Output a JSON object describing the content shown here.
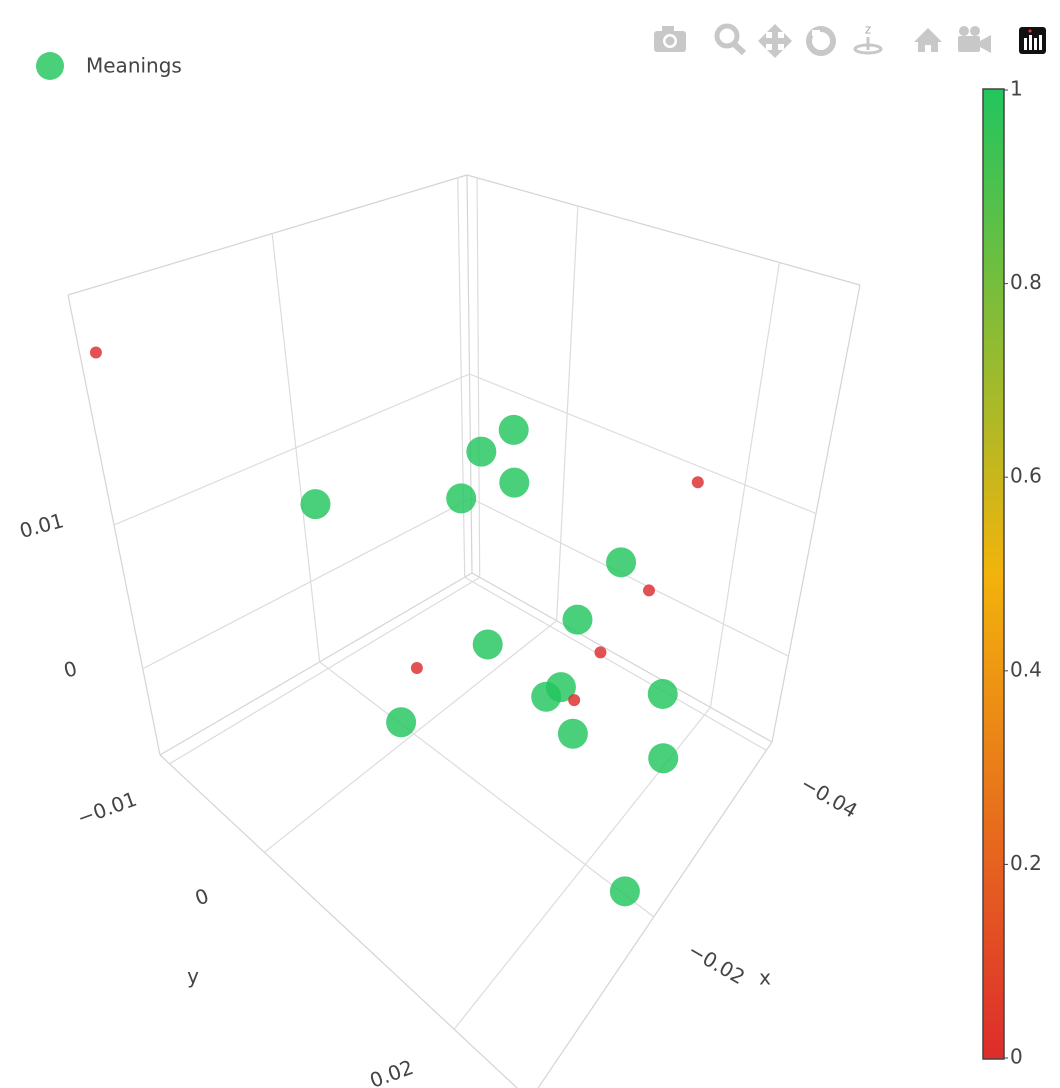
{
  "chart_data": {
    "type": "scatter3d",
    "legend_corner": "top-left",
    "series": [
      {
        "name": "Meanings",
        "x": [
          -0.0324,
          -0.0315,
          -0.0298,
          -0.0298,
          -0.0195,
          -0.0281,
          -0.0281,
          -0.0238,
          -0.0238,
          -0.0238,
          -0.0161,
          -0.0281,
          -0.0238,
          -0.0281,
          -0.0195,
          0.0011,
          -0.0367,
          -0.0315,
          -0.0281,
          -0.0182,
          -0.0238
        ],
        "y": [
          0.0015,
          -0.0012,
          0.0038,
          -0.002,
          -0.009,
          0.0167,
          0.0124,
          0.0058,
          0.0124,
          0.014,
          0.0019,
          0.0222,
          0.0155,
          0.0229,
          0.0249,
          -0.0102,
          0.0179,
          0.0175,
          0.0151,
          0.0023,
          0.0155
        ],
        "z": [
          0.0122,
          0.01,
          0.01,
          0.0068,
          0.0068,
          0.0094,
          0.0039,
          0.0014,
          0.0004,
          0.0017,
          -0.0028,
          0.0023,
          -0.0009,
          -0.0018,
          -0.0054,
          0.0222,
          0.0116,
          0.0062,
          0.0026,
          0.0004,
          0.0014
        ],
        "color": [
          1,
          1,
          1,
          1,
          1,
          1,
          1,
          1,
          1,
          1,
          1,
          1,
          1,
          1,
          1,
          0,
          0,
          0,
          0,
          0,
          0
        ]
      }
    ],
    "opacity": 0.82,
    "colorscale": [
      [
        0,
        "#dd2c2c"
      ],
      [
        0.5,
        "#f2b30c"
      ],
      [
        1,
        "#22c55e"
      ]
    ],
    "clim": [
      0,
      1
    ],
    "cticks": [
      0,
      0.2,
      0.4,
      0.6,
      0.8,
      1
    ],
    "xlim": [
      -0.041,
      0.002
    ],
    "ylim": [
      -0.011,
      0.028
    ],
    "zlim": [
      -0.006,
      0.026
    ],
    "xticks": [
      {
        "value": -0.04,
        "label": "−0.04"
      },
      {
        "value": -0.02,
        "label": "−0.02"
      }
    ],
    "yticks": [
      {
        "value": -0.01,
        "label": "−0.01"
      },
      0,
      0.02
    ],
    "zticks": [
      0,
      0.01
    ],
    "x_label": "x",
    "y_label": "y",
    "grid": true
  }
}
